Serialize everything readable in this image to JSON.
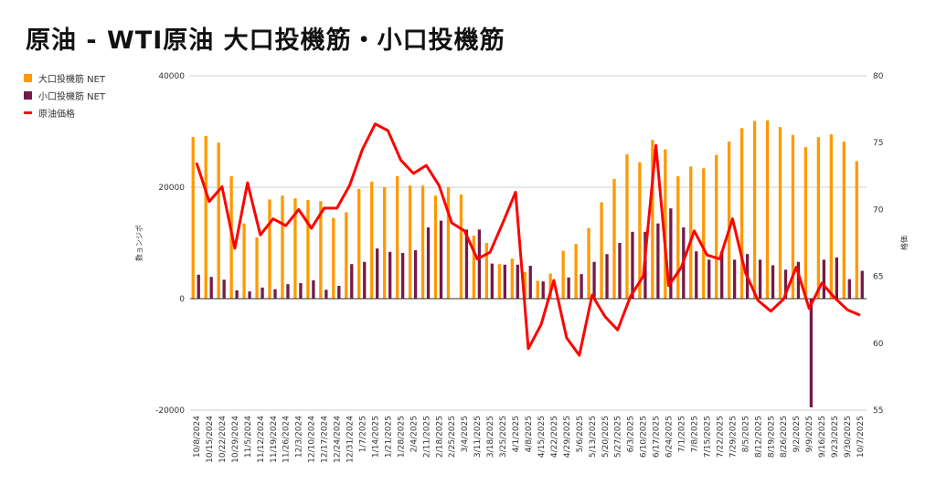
{
  "title": "原油 - WTI原油 大口投機筋・小口投機筋",
  "legend": [
    {
      "label": "大口投機筋 NET",
      "color": "#FF9900",
      "kind": "bar"
    },
    {
      "label": "小口投機筋 NET",
      "color": "#741B47",
      "kind": "bar"
    },
    {
      "label": "原油価格",
      "color": "#FF0000",
      "kind": "line"
    }
  ],
  "chart_data": {
    "type": "bar",
    "title": "原油 - WTI原油 大口投機筋・小口投機筋",
    "ylabel": "数ョンジポ",
    "ylabel_right": "格価",
    "ylim": [
      -20000,
      40000
    ],
    "ylim_right": [
      55,
      80
    ],
    "yticks": [
      -20000,
      0,
      20000,
      40000
    ],
    "yticks_right": [
      55,
      60,
      65,
      70,
      75,
      80
    ],
    "grid": true,
    "legend_position": "top-left",
    "categories": [
      "10/8/2024",
      "10/15/2024",
      "10/22/2024",
      "10/29/2024",
      "11/5/2024",
      "11/12/2024",
      "11/19/2024",
      "11/26/2024",
      "12/3/2024",
      "12/10/2024",
      "12/17/2024",
      "12/24/2024",
      "12/31/2024",
      "1/7/2025",
      "1/14/2025",
      "1/21/2025",
      "1/28/2025",
      "2/4/2025",
      "2/11/2025",
      "2/18/2025",
      "2/25/2025",
      "3/4/2025",
      "3/11/2025",
      "3/18/2025",
      "3/25/2025",
      "4/1/2025",
      "4/8/2025",
      "4/15/2025",
      "4/22/2025",
      "4/29/2025",
      "5/6/2025",
      "5/13/2025",
      "5/20/2025",
      "5/27/2025",
      "6/3/2025",
      "6/10/2025",
      "6/17/2025",
      "6/24/2025",
      "7/1/2025",
      "7/8/2025",
      "7/15/2025",
      "7/22/2025",
      "7/29/2025",
      "8/5/2025",
      "8/12/2025",
      "8/19/2025",
      "8/26/2025",
      "9/2/2025",
      "9/9/2025",
      "9/16/2025",
      "9/23/2025",
      "9/30/2025",
      "10/7/2025"
    ],
    "series": [
      {
        "name": "大口投機筋 NET",
        "type": "bar",
        "axis": "left",
        "color": "#FF9900",
        "values": [
          29000,
          29200,
          28000,
          22000,
          13500,
          11000,
          17800,
          18500,
          18000,
          17700,
          17500,
          14500,
          15500,
          19700,
          21000,
          20000,
          22000,
          20300,
          20300,
          18500,
          20000,
          18700,
          11300,
          10000,
          6200,
          7200,
          4800,
          3200,
          4500,
          8600,
          9800,
          12700,
          17300,
          21500,
          25900,
          24500,
          28500,
          26800,
          22000,
          23700,
          23400,
          25800,
          28200,
          30600,
          31900,
          32000,
          30800,
          29400,
          27200,
          29000,
          29500,
          28200,
          24700
        ]
      },
      {
        "name": "小口投機筋 NET",
        "type": "bar",
        "axis": "left",
        "color": "#741B47",
        "values": [
          4300,
          3900,
          3400,
          1500,
          1300,
          2000,
          1700,
          2600,
          2800,
          3300,
          1600,
          2300,
          6200,
          6600,
          9000,
          8400,
          8200,
          8700,
          12800,
          14000,
          0,
          12400,
          12400,
          6300,
          6100,
          6100,
          5900,
          3100,
          0,
          3800,
          4400,
          6600,
          8000,
          10000,
          12000,
          12000,
          13500,
          16200,
          12800,
          8500,
          7000,
          8500,
          7000,
          8000,
          7000,
          6000,
          5200,
          6600,
          -19500,
          7000,
          7400,
          3500,
          5000
        ]
      },
      {
        "name": "原油価格",
        "type": "line",
        "axis": "right",
        "color": "#FF0000",
        "values": [
          73.5,
          70.6,
          71.7,
          67.1,
          72.0,
          68.1,
          69.3,
          68.8,
          70.0,
          68.6,
          70.1,
          70.1,
          71.8,
          74.5,
          76.4,
          75.9,
          73.7,
          72.7,
          73.3,
          71.8,
          69.0,
          68.4,
          66.3,
          66.8,
          69.0,
          71.3,
          59.6,
          61.4,
          64.7,
          60.4,
          59.1,
          63.6,
          62.0,
          61.0,
          63.5,
          65.0,
          74.8,
          64.3,
          65.7,
          68.4,
          66.6,
          66.3,
          69.3,
          65.3,
          63.2,
          62.4,
          63.3,
          65.7,
          62.6,
          64.5,
          63.4,
          62.5,
          62.1
        ]
      }
    ]
  }
}
